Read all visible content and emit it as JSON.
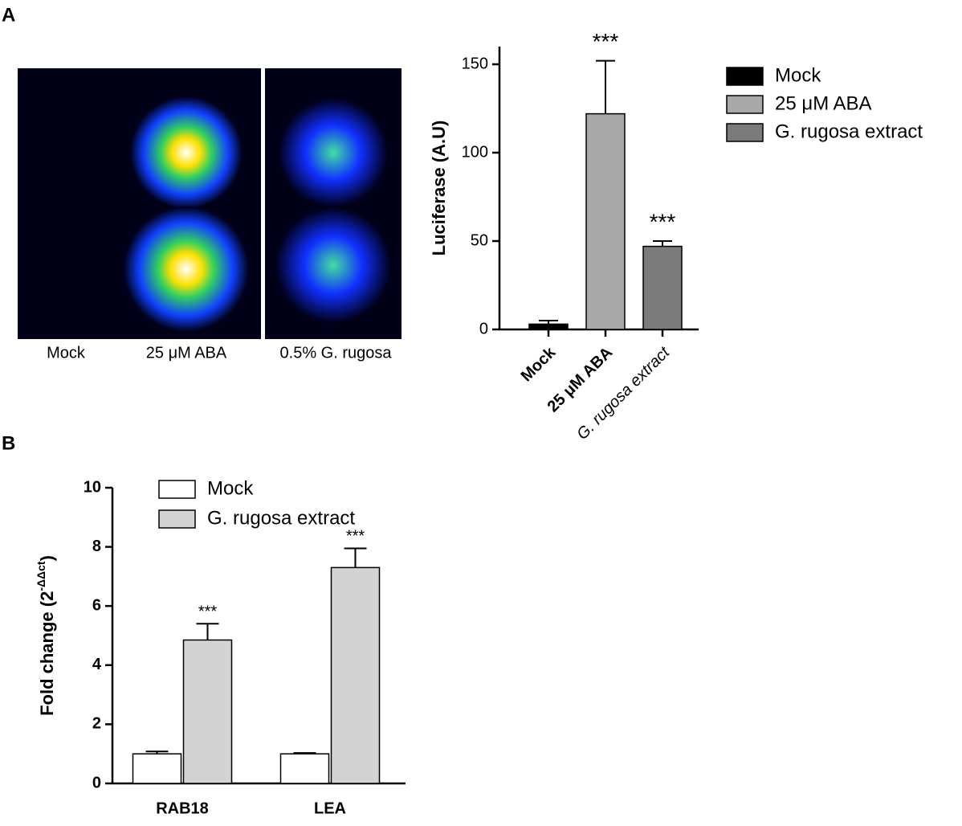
{
  "panel_labels": [
    "A",
    "B"
  ],
  "image_captions": [
    "Mock",
    "25 μM ABA",
    "0.5% G. rugosa"
  ],
  "chart_data": [
    {
      "type": "bar",
      "ylabel": "Luciferase (A.U)",
      "categories": [
        "Mock",
        "25 μM ABA",
        "G. rugosa extract"
      ],
      "values": [
        3,
        122,
        47
      ],
      "errors": [
        2,
        30,
        3
      ],
      "colors": [
        "#000000",
        "#a9a9a9",
        "#7b7b7b"
      ],
      "annotations": [
        null,
        "***",
        "***"
      ],
      "ylim": [
        0,
        160
      ],
      "yticks": [
        0,
        50,
        100,
        150
      ],
      "legend": true
    },
    {
      "type": "grouped-bar",
      "ylabel": "Fold change (2",
      "ylabel_superscript": "-ΔΔct",
      "ylabel_end": ")",
      "categories": [
        "RAB18",
        "LEA"
      ],
      "series": [
        {
          "name": "Mock",
          "color": "#ffffff",
          "values": [
            1.0,
            1.0
          ],
          "errors": [
            0.08,
            0.03
          ]
        },
        {
          "name": "G. rugosa extract",
          "color": "#d3d3d3",
          "values": [
            4.85,
            7.3
          ],
          "errors": [
            0.55,
            0.65
          ],
          "annotations": [
            "***",
            "***"
          ]
        }
      ],
      "ylim": [
        0,
        10
      ],
      "yticks": [
        0,
        2,
        4,
        6,
        8,
        10
      ],
      "legend": true
    }
  ]
}
